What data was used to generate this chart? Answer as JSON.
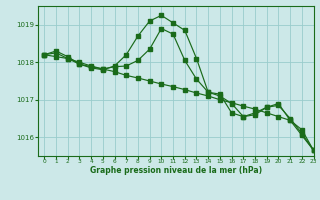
{
  "background_color": "#cce8e8",
  "grid_color": "#99cccc",
  "line_color": "#1a6b1a",
  "title": "Graphe pression niveau de la mer (hPa)",
  "xlim": [
    -0.5,
    23
  ],
  "ylim": [
    1015.5,
    1019.5
  ],
  "yticks": [
    1016,
    1017,
    1018,
    1019
  ],
  "xticks": [
    0,
    1,
    2,
    3,
    4,
    5,
    6,
    7,
    8,
    9,
    10,
    11,
    12,
    13,
    14,
    15,
    16,
    17,
    18,
    19,
    20,
    21,
    22,
    23
  ],
  "series_diagonal": {
    "x": [
      0,
      1,
      2,
      3,
      4,
      5,
      6,
      7,
      8,
      9,
      10,
      11,
      12,
      13,
      14,
      15,
      16,
      17,
      18,
      19,
      20,
      21,
      22,
      23
    ],
    "y": [
      1018.2,
      1018.15,
      1018.1,
      1018.0,
      1017.9,
      1017.82,
      1017.75,
      1017.65,
      1017.58,
      1017.5,
      1017.42,
      1017.35,
      1017.27,
      1017.18,
      1017.1,
      1017.0,
      1016.92,
      1016.83,
      1016.75,
      1016.65,
      1016.55,
      1016.45,
      1016.2,
      1015.65
    ]
  },
  "series_peak": {
    "x": [
      0,
      1,
      2,
      3,
      4,
      5,
      6,
      7,
      8,
      9,
      10,
      11,
      12,
      13,
      14,
      15,
      16,
      17,
      18,
      19,
      20,
      21,
      22,
      23
    ],
    "y": [
      1018.2,
      1018.3,
      1018.15,
      1017.95,
      1017.85,
      1017.8,
      1017.9,
      1018.2,
      1018.7,
      1019.1,
      1019.25,
      1019.05,
      1018.85,
      1018.1,
      1017.2,
      1017.15,
      1016.65,
      1016.55,
      1016.65,
      1016.8,
      1016.9,
      1016.45,
      1016.05,
      1015.65
    ]
  },
  "series_mid": {
    "x": [
      0,
      1,
      2,
      3,
      4,
      5,
      6,
      7,
      8,
      9,
      10,
      11,
      12,
      13,
      14,
      15,
      16,
      17,
      18,
      19,
      20,
      21,
      22,
      23
    ],
    "y": [
      1018.2,
      1018.25,
      1018.1,
      1017.95,
      1017.88,
      1017.82,
      1017.88,
      1017.9,
      1018.05,
      1018.35,
      1018.9,
      1018.75,
      1018.05,
      1017.55,
      1017.2,
      1017.1,
      1016.9,
      1016.55,
      1016.6,
      1016.8,
      1016.85,
      1016.5,
      1016.1,
      1015.65
    ]
  }
}
